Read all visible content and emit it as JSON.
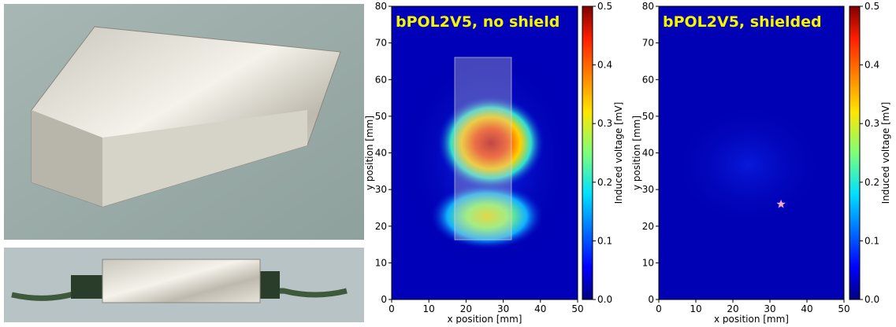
{
  "chart_data": [
    {
      "type": "heatmap",
      "title": "bPOL2V5, no shield",
      "xlabel": "x position [mm]",
      "ylabel": "y position [mm]",
      "colorbar_label": "Induced voltage [mV]",
      "xlim": [
        0,
        50
      ],
      "xticks": [
        0,
        10,
        20,
        30,
        40,
        50
      ],
      "ylim": [
        0,
        80
      ],
      "yticks": [
        0,
        10,
        20,
        30,
        40,
        50,
        60,
        70,
        80
      ],
      "clim": [
        0,
        0.5
      ],
      "cticks": [
        {
          "value": 0,
          "label": "0.0"
        },
        {
          "value": 0.1,
          "label": "0.1"
        },
        {
          "value": 0.2,
          "label": "0.2"
        },
        {
          "value": 0.3,
          "label": "0.3"
        },
        {
          "value": 0.4,
          "label": "0.4"
        },
        {
          "value": 0.5,
          "label": "0.5"
        }
      ],
      "colormap": "jet"
    },
    {
      "type": "heatmap",
      "title": "bPOL2V5, shielded",
      "xlabel": "x position [mm]",
      "ylabel": "y position [mm]",
      "colorbar_label": "Induced voltage [mV]",
      "xlim": [
        0,
        50
      ],
      "xticks": [
        0,
        10,
        20,
        30,
        40,
        50
      ],
      "ylim": [
        0,
        80
      ],
      "yticks": [
        0,
        10,
        20,
        30,
        40,
        50,
        60,
        70,
        80
      ],
      "clim": [
        0,
        0.5
      ],
      "cticks": [
        {
          "value": 0,
          "label": "0.0"
        },
        {
          "value": 0.1,
          "label": "0.1"
        },
        {
          "value": 0.2,
          "label": "0.2"
        },
        {
          "value": 0.3,
          "label": "0.3"
        },
        {
          "value": 0.4,
          "label": "0.4"
        },
        {
          "value": 0.5,
          "label": "0.5"
        }
      ],
      "colormap": "jet",
      "marker": {
        "x": 33,
        "y": 26,
        "color": "#f2a7d0"
      }
    }
  ]
}
